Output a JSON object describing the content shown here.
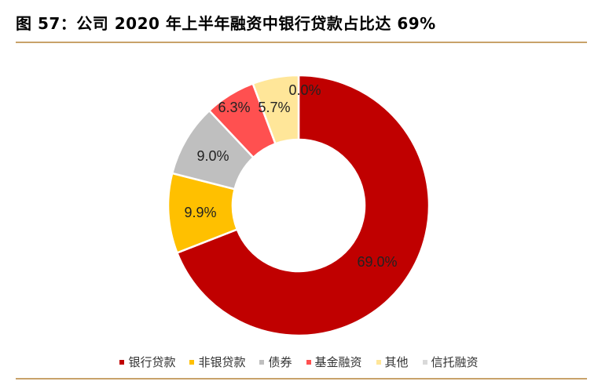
{
  "title": "图 57：公司 2020 年上半年融资中银行贷款占比达 69%",
  "chart_data": {
    "type": "pie",
    "style": "donut",
    "title": "",
    "legend_position": "bottom",
    "slices": [
      {
        "name": "银行贷款",
        "value": 69.0,
        "label": "69.0%",
        "color": "#c00000"
      },
      {
        "name": "非银贷款",
        "value": 9.9,
        "label": "9.9%",
        "color": "#ffc000"
      },
      {
        "name": "债券",
        "value": 9.0,
        "label": "9.0%",
        "color": "#bfbfbf"
      },
      {
        "name": "基金融资",
        "value": 6.3,
        "label": "6.3%",
        "color": "#ff5050"
      },
      {
        "name": "其他",
        "value": 5.7,
        "label": "5.7%",
        "color": "#ffe699"
      },
      {
        "name": "信托融资",
        "value": 0.0,
        "label": "0.0%",
        "color": "#d9d9d9"
      }
    ]
  }
}
